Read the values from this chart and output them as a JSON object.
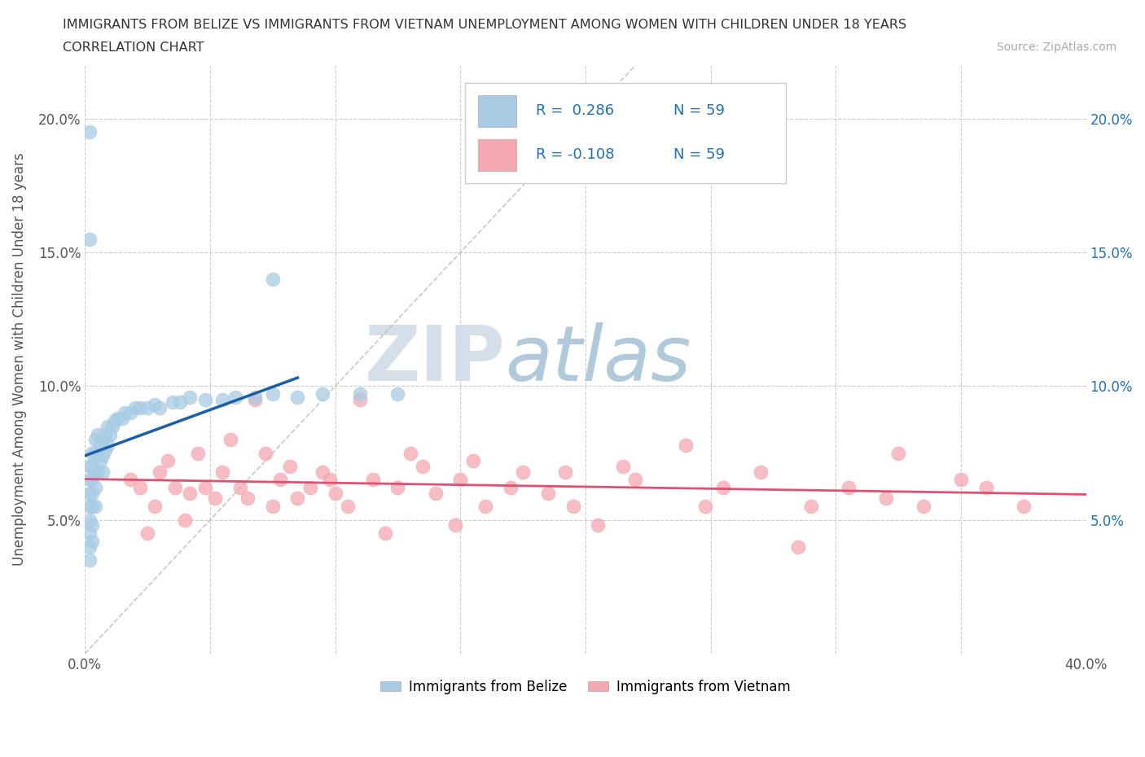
{
  "title_line1": "IMMIGRANTS FROM BELIZE VS IMMIGRANTS FROM VIETNAM UNEMPLOYMENT AMONG WOMEN WITH CHILDREN UNDER 18 YEARS",
  "title_line2": "CORRELATION CHART",
  "source": "Source: ZipAtlas.com",
  "ylabel": "Unemployment Among Women with Children Under 18 years",
  "xlim": [
    0.0,
    0.4
  ],
  "ylim": [
    0.0,
    0.22
  ],
  "xticks": [
    0.0,
    0.05,
    0.1,
    0.15,
    0.2,
    0.25,
    0.3,
    0.35,
    0.4
  ],
  "yticks": [
    0.0,
    0.05,
    0.1,
    0.15,
    0.2
  ],
  "belize_color": "#a8cce4",
  "vietnam_color": "#f4a8b0",
  "belize_line_color": "#1a5fa8",
  "vietnam_line_color": "#e05070",
  "belize_R": 0.286,
  "belize_N": 59,
  "vietnam_R": -0.108,
  "vietnam_N": 59,
  "watermark_zip": "ZIP",
  "watermark_atlas": "atlas",
  "belize_x": [
    0.002,
    0.002,
    0.002,
    0.002,
    0.002,
    0.002,
    0.002,
    0.002,
    0.003,
    0.003,
    0.003,
    0.003,
    0.003,
    0.003,
    0.003,
    0.004,
    0.004,
    0.004,
    0.004,
    0.004,
    0.005,
    0.005,
    0.005,
    0.006,
    0.006,
    0.007,
    0.007,
    0.007,
    0.008,
    0.008,
    0.009,
    0.009,
    0.01,
    0.011,
    0.012,
    0.013,
    0.015,
    0.016,
    0.018,
    0.02,
    0.022,
    0.025,
    0.028,
    0.03,
    0.035,
    0.038,
    0.042,
    0.048,
    0.055,
    0.06,
    0.068,
    0.075,
    0.085,
    0.095,
    0.11,
    0.125,
    0.002,
    0.002,
    0.075
  ],
  "belize_y": [
    0.07,
    0.065,
    0.06,
    0.055,
    0.05,
    0.045,
    0.04,
    0.035,
    0.075,
    0.07,
    0.065,
    0.06,
    0.055,
    0.048,
    0.042,
    0.08,
    0.075,
    0.068,
    0.062,
    0.055,
    0.082,
    0.075,
    0.068,
    0.078,
    0.072,
    0.08,
    0.074,
    0.068,
    0.082,
    0.076,
    0.085,
    0.078,
    0.082,
    0.085,
    0.087,
    0.088,
    0.088,
    0.09,
    0.09,
    0.092,
    0.092,
    0.092,
    0.093,
    0.092,
    0.094,
    0.094,
    0.096,
    0.095,
    0.095,
    0.096,
    0.096,
    0.097,
    0.096,
    0.097,
    0.097,
    0.097,
    0.195,
    0.155,
    0.14
  ],
  "vietnam_x": [
    0.018,
    0.022,
    0.025,
    0.028,
    0.03,
    0.033,
    0.036,
    0.04,
    0.042,
    0.045,
    0.048,
    0.052,
    0.055,
    0.058,
    0.062,
    0.065,
    0.068,
    0.072,
    0.075,
    0.078,
    0.082,
    0.085,
    0.09,
    0.095,
    0.1,
    0.105,
    0.11,
    0.115,
    0.12,
    0.125,
    0.13,
    0.135,
    0.14,
    0.15,
    0.155,
    0.16,
    0.17,
    0.175,
    0.185,
    0.195,
    0.205,
    0.215,
    0.22,
    0.24,
    0.255,
    0.27,
    0.29,
    0.305,
    0.32,
    0.335,
    0.35,
    0.36,
    0.375,
    0.325,
    0.285,
    0.248,
    0.192,
    0.148,
    0.098
  ],
  "vietnam_y": [
    0.065,
    0.062,
    0.045,
    0.055,
    0.068,
    0.072,
    0.062,
    0.05,
    0.06,
    0.075,
    0.062,
    0.058,
    0.068,
    0.08,
    0.062,
    0.058,
    0.095,
    0.075,
    0.055,
    0.065,
    0.07,
    0.058,
    0.062,
    0.068,
    0.06,
    0.055,
    0.095,
    0.065,
    0.045,
    0.062,
    0.075,
    0.07,
    0.06,
    0.065,
    0.072,
    0.055,
    0.062,
    0.068,
    0.06,
    0.055,
    0.048,
    0.07,
    0.065,
    0.078,
    0.062,
    0.068,
    0.055,
    0.062,
    0.058,
    0.055,
    0.065,
    0.062,
    0.055,
    0.075,
    0.04,
    0.055,
    0.068,
    0.048,
    0.065
  ]
}
